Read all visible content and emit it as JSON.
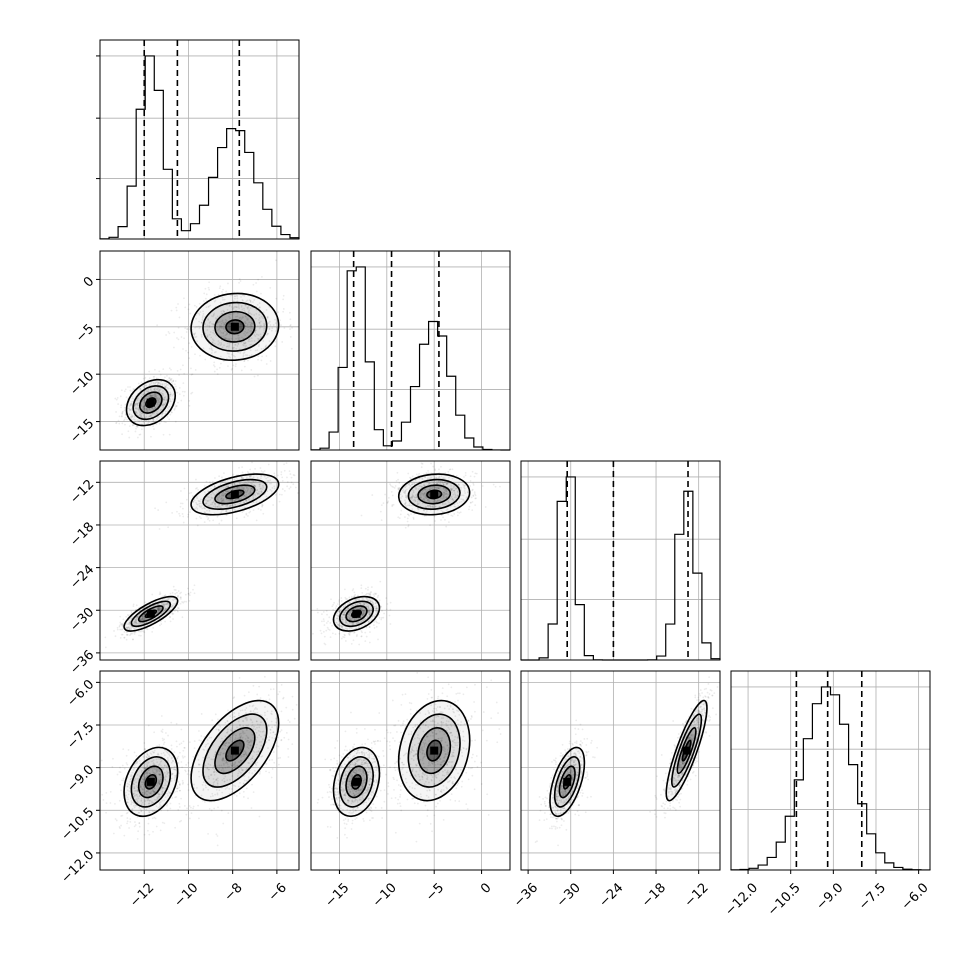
{
  "chart_data": {
    "type": "corner",
    "description_source": "corner plot of 4 parameters with 1D histograms on the diagonal and 2D density contours below",
    "parameters": [
      {
        "range": [
          -14,
          -5
        ],
        "ticks": [
          -12,
          -10,
          -8,
          -6
        ],
        "tick_labels": [
          "−12",
          "−10",
          "−8",
          "−6"
        ],
        "quantiles": [
          -12.0,
          -10.5,
          -7.7
        ],
        "modes": [
          {
            "mean": -11.7,
            "sd": 0.55,
            "weight": 1.0
          },
          {
            "mean": -7.9,
            "sd": 0.9,
            "weight": 1.0
          }
        ]
      },
      {
        "range": [
          -18,
          3
        ],
        "ticks": [
          -15,
          -10,
          -5,
          0
        ],
        "tick_labels": [
          "−15",
          "−10",
          "−5",
          "0"
        ],
        "quantiles": [
          -13.5,
          -9.5,
          -4.5
        ],
        "modes": [
          {
            "mean": -13.2,
            "sd": 1.1,
            "weight": 1.0
          },
          {
            "mean": -5.0,
            "sd": 1.7,
            "weight": 1.0
          }
        ]
      },
      {
        "range": [
          -37,
          -9
        ],
        "ticks": [
          -36,
          -30,
          -24,
          -18,
          -12
        ],
        "tick_labels": [
          "−36",
          "−30",
          "−24",
          "−18",
          "−12"
        ],
        "quantiles": [
          -30.5,
          -24.0,
          -13.5
        ],
        "modes": [
          {
            "mean": -30.5,
            "sd": 1.1,
            "weight": 1.0
          },
          {
            "mean": -13.7,
            "sd": 1.3,
            "weight": 1.0
          }
        ]
      },
      {
        "range": [
          -12.6,
          -5.6
        ],
        "ticks": [
          -12.0,
          -10.5,
          -9.0,
          -7.5,
          -6.0
        ],
        "tick_labels": [
          "−12.0",
          "−10.5",
          "−9.0",
          "−7.5",
          "−6.0"
        ],
        "quantiles": [
          -10.3,
          -9.2,
          -8.0
        ],
        "modes": [
          {
            "mean": -9.2,
            "sd": 0.85,
            "weight": 1.0
          }
        ]
      }
    ],
    "pairs": [
      {
        "row": 1,
        "col": 0,
        "blobs": [
          {
            "cx": -11.7,
            "cy": -13.0,
            "sx": 0.5,
            "sy": 1.1,
            "rho": 0.3
          },
          {
            "cx": -7.9,
            "cy": -5.0,
            "sx": 0.9,
            "sy": 1.6,
            "rho": 0.05
          }
        ]
      },
      {
        "row": 2,
        "col": 0,
        "blobs": [
          {
            "cx": -11.7,
            "cy": -30.5,
            "sx": 0.55,
            "sy": 1.1,
            "rho": 0.75
          },
          {
            "cx": -7.9,
            "cy": -13.7,
            "sx": 0.9,
            "sy": 1.3,
            "rho": 0.5
          }
        ]
      },
      {
        "row": 2,
        "col": 1,
        "blobs": [
          {
            "cx": -13.2,
            "cy": -30.5,
            "sx": 1.1,
            "sy": 1.1,
            "rho": 0.35
          },
          {
            "cx": -5.0,
            "cy": -13.7,
            "sx": 1.7,
            "sy": 1.3,
            "rho": 0.1
          }
        ]
      },
      {
        "row": 3,
        "col": 0,
        "blobs": [
          {
            "cx": -11.7,
            "cy": -9.5,
            "sx": 0.55,
            "sy": 0.55,
            "rho": 0.3
          },
          {
            "cx": -7.9,
            "cy": -8.4,
            "sx": 0.9,
            "sy": 0.8,
            "rho": 0.55
          }
        ]
      },
      {
        "row": 3,
        "col": 1,
        "blobs": [
          {
            "cx": -13.2,
            "cy": -9.5,
            "sx": 1.1,
            "sy": 0.55,
            "rho": 0.25
          },
          {
            "cx": -5.0,
            "cy": -8.4,
            "sx": 1.7,
            "sy": 0.8,
            "rho": 0.2
          }
        ]
      },
      {
        "row": 3,
        "col": 2,
        "blobs": [
          {
            "cx": -30.5,
            "cy": -9.5,
            "sx": 1.1,
            "sy": 0.55,
            "rho": 0.55
          },
          {
            "cx": -13.7,
            "cy": -8.4,
            "sx": 1.3,
            "sy": 0.8,
            "rho": 0.85
          }
        ]
      }
    ],
    "colors": {
      "ink": "#000000",
      "grid": "#b0b0b0",
      "density": "#000000"
    }
  }
}
